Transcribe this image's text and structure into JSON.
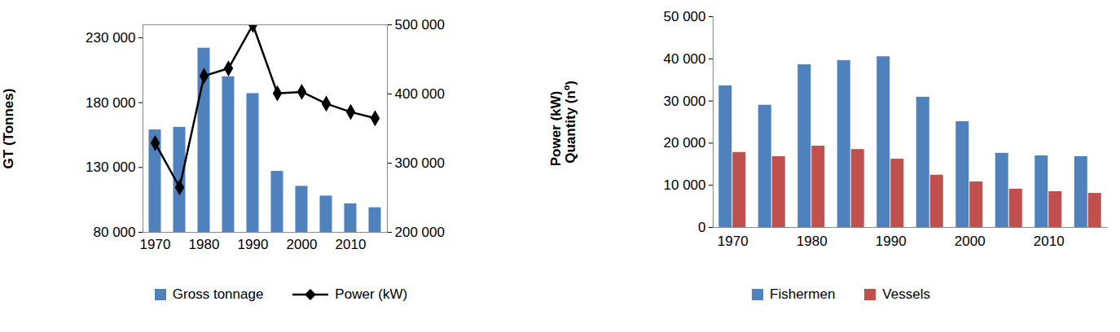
{
  "chart_data": [
    {
      "type": "bar",
      "categories": [
        "1970",
        null,
        "1980",
        null,
        "1990",
        null,
        "2000",
        null,
        "2010",
        null
      ],
      "ylabel": "GT (Tonnes)",
      "y2label": "Power (kW)",
      "ylim": [
        80000,
        240000
      ],
      "yticks": [
        {
          "value": 80000,
          "label": "80 000"
        },
        {
          "value": 130000,
          "label": "130 000"
        },
        {
          "value": 180000,
          "label": "180 000"
        },
        {
          "value": 230000,
          "label": "230 000"
        }
      ],
      "y2lim": [
        200000,
        500000
      ],
      "y2ticks": [
        {
          "value": 200000,
          "label": "200 000"
        },
        {
          "value": 300000,
          "label": "300 000"
        },
        {
          "value": 400000,
          "label": "400 000"
        },
        {
          "value": 500000,
          "label": "500 000"
        }
      ],
      "grid": false,
      "legend": "bottom",
      "series": [
        {
          "name": "Gross tonnage",
          "type": "bar",
          "color": "#4f81bd",
          "values": [
            159000,
            161000,
            222000,
            200000,
            187000,
            127000,
            115500,
            108000,
            102000,
            99000
          ]
        },
        {
          "name": "Power (kW)",
          "type": "line",
          "axis": "y2",
          "color": "#000000",
          "marker": "diamond",
          "values": [
            329000,
            265000,
            426000,
            437000,
            500000,
            401000,
            403000,
            386000,
            374000,
            365000
          ]
        }
      ]
    },
    {
      "type": "bar",
      "categories": [
        "1970",
        null,
        "1980",
        null,
        "1990",
        null,
        "2000",
        null,
        "2010",
        null
      ],
      "ylabel": "Quantity (nº)",
      "ylim": [
        0,
        50000
      ],
      "yticks": [
        0,
        {
          "value": 10000,
          "label": "10 000"
        },
        {
          "value": 20000,
          "label": "20 000"
        },
        {
          "value": 30000,
          "label": "30 000"
        },
        {
          "value": 40000,
          "label": "40 000"
        },
        {
          "value": 50000,
          "label": "50 000"
        }
      ],
      "grid": false,
      "legend": "bottom",
      "series": [
        {
          "name": "Fishermen",
          "color": "#4f81bd",
          "values": [
            33600,
            29000,
            38600,
            39600,
            40500,
            30900,
            25100,
            17600,
            17000,
            16800
          ]
        },
        {
          "name": "Vessels",
          "color": "#c0504d",
          "values": [
            17800,
            16800,
            19300,
            18500,
            16200,
            12400,
            10800,
            9100,
            8500,
            8100
          ]
        }
      ]
    }
  ]
}
